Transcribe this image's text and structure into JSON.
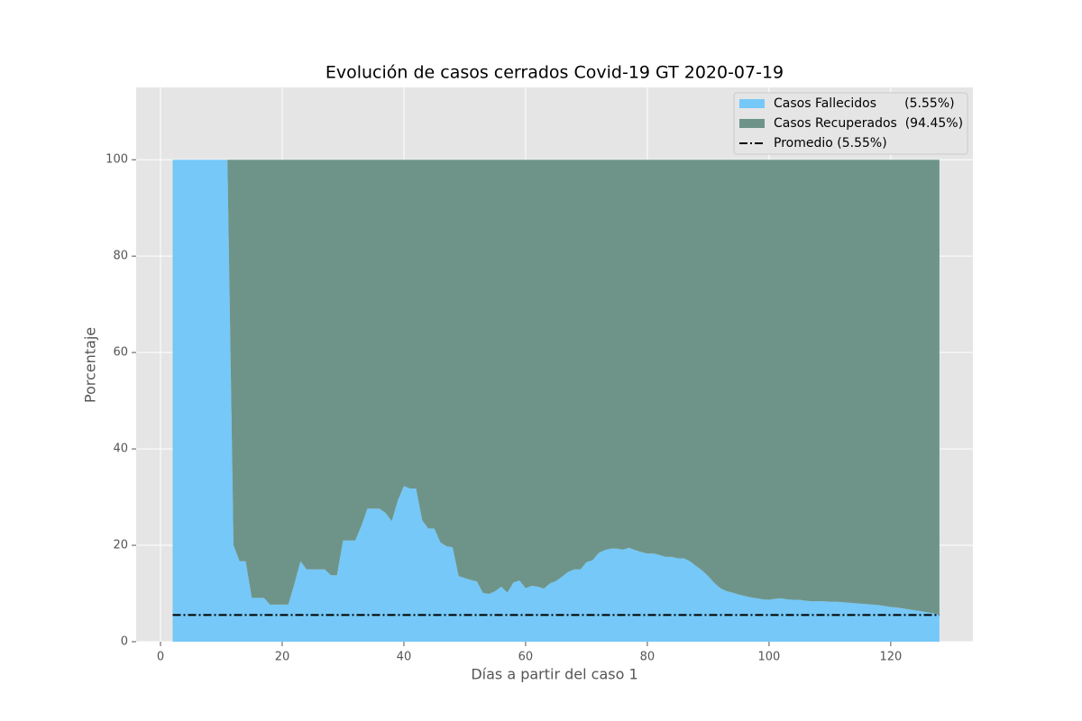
{
  "chart_data": {
    "type": "stacked_area",
    "title": "Evolución de casos cerrados Covid-19 GT 2020-07-19",
    "xlabel": "Días a partir del caso 1",
    "ylabel": "Porcentaje",
    "x": [
      2,
      3,
      4,
      5,
      6,
      7,
      8,
      9,
      10,
      11,
      12,
      13,
      14,
      15,
      16,
      17,
      18,
      19,
      20,
      21,
      22,
      23,
      24,
      25,
      26,
      27,
      28,
      29,
      30,
      31,
      32,
      33,
      34,
      35,
      36,
      37,
      38,
      39,
      40,
      41,
      42,
      43,
      44,
      45,
      46,
      47,
      48,
      49,
      50,
      51,
      52,
      53,
      54,
      55,
      56,
      57,
      58,
      59,
      60,
      61,
      62,
      63,
      64,
      65,
      66,
      67,
      68,
      69,
      70,
      71,
      72,
      73,
      74,
      75,
      76,
      77,
      78,
      79,
      80,
      81,
      82,
      83,
      84,
      85,
      86,
      87,
      88,
      89,
      90,
      91,
      92,
      93,
      94,
      95,
      96,
      97,
      98,
      99,
      100,
      101,
      102,
      103,
      104,
      105,
      106,
      107,
      108,
      109,
      110,
      111,
      112,
      113,
      114,
      115,
      116,
      117,
      118,
      119,
      120,
      121,
      122,
      123,
      124,
      125,
      126,
      127,
      128
    ],
    "series": [
      {
        "name": "Casos Fallecidos       (5.55%)",
        "color": "#75c8f7",
        "values": [
          100,
          100,
          100,
          100,
          100,
          100,
          100,
          100,
          100,
          100,
          20,
          16.7,
          16.7,
          9.1,
          9.1,
          9.1,
          7.7,
          7.7,
          7.7,
          7.7,
          12,
          16.7,
          15,
          15,
          15,
          15,
          13.8,
          13.8,
          21,
          21,
          21,
          24,
          27.6,
          27.6,
          27.6,
          26.7,
          25,
          29.3,
          32.3,
          31.8,
          31.8,
          25.2,
          23.5,
          23.5,
          20.6,
          19.8,
          19.6,
          13.6,
          13.2,
          12.8,
          12.5,
          10.1,
          9.9,
          10.5,
          11.4,
          10.2,
          12.3,
          12.7,
          11.1,
          11.6,
          11.4,
          11,
          12.1,
          12.6,
          13.5,
          14.5,
          15,
          15,
          16.5,
          16.9,
          18.4,
          19,
          19.3,
          19.3,
          19.1,
          19.5,
          19,
          18.6,
          18.3,
          18.3,
          18,
          17.6,
          17.6,
          17.3,
          17.3,
          16.7,
          15.7,
          14.8,
          13.6,
          12.2,
          11.1,
          10.5,
          10.2,
          9.8,
          9.5,
          9.2,
          9,
          8.8,
          8.7,
          8.9,
          9,
          8.8,
          8.7,
          8.7,
          8.5,
          8.4,
          8.4,
          8.4,
          8.3,
          8.3,
          8.2,
          8.1,
          8,
          7.9,
          7.8,
          7.7,
          7.6,
          7.4,
          7.2,
          7.1,
          6.9,
          6.7,
          6.5,
          6.3,
          6.1,
          5.9,
          5.6
        ]
      },
      {
        "name": "Casos Recuperados  (94.45%)",
        "color": "#6e9489",
        "values": [
          0,
          0,
          0,
          0,
          0,
          0,
          0,
          0,
          0,
          0,
          80,
          83.3,
          83.3,
          90.9,
          90.9,
          90.9,
          92.3,
          92.3,
          92.3,
          92.3,
          88,
          83.3,
          85,
          85,
          85,
          85,
          86.2,
          86.2,
          79,
          79,
          79,
          76,
          72.4,
          72.4,
          72.4,
          73.3,
          75,
          70.7,
          67.7,
          68.2,
          68.2,
          74.8,
          76.5,
          76.5,
          79.4,
          80.2,
          80.4,
          86.4,
          86.8,
          87.2,
          87.5,
          89.9,
          90.1,
          89.5,
          88.6,
          89.8,
          87.7,
          87.3,
          88.9,
          88.4,
          88.6,
          89,
          87.9,
          87.4,
          86.5,
          85.5,
          85,
          85,
          83.5,
          83.1,
          81.6,
          81,
          80.7,
          80.7,
          80.9,
          80.5,
          81,
          81.4,
          81.7,
          81.7,
          82,
          82.4,
          82.4,
          82.7,
          82.7,
          83.3,
          84.3,
          85.2,
          86.4,
          87.8,
          88.9,
          89.5,
          89.8,
          90.2,
          90.5,
          90.8,
          91,
          91.2,
          91.3,
          91.1,
          91,
          91.2,
          91.3,
          91.3,
          91.5,
          91.6,
          91.6,
          91.6,
          91.7,
          91.7,
          91.8,
          91.9,
          92,
          92.1,
          92.2,
          92.3,
          92.4,
          92.6,
          92.8,
          92.9,
          93.1,
          93.3,
          93.5,
          93.7,
          93.9,
          94.1,
          94.4
        ]
      }
    ],
    "average_line": {
      "name": "Promedio (5.55%)",
      "value": 5.55,
      "color": "#000000"
    },
    "xlim": [
      -4,
      133.5
    ],
    "xticks": [
      0,
      20,
      40,
      60,
      80,
      100,
      120
    ],
    "ylim": [
      0,
      115
    ],
    "yticks": [
      0,
      20,
      40,
      60,
      80,
      100
    ],
    "grid": true,
    "legend": "upper right"
  }
}
